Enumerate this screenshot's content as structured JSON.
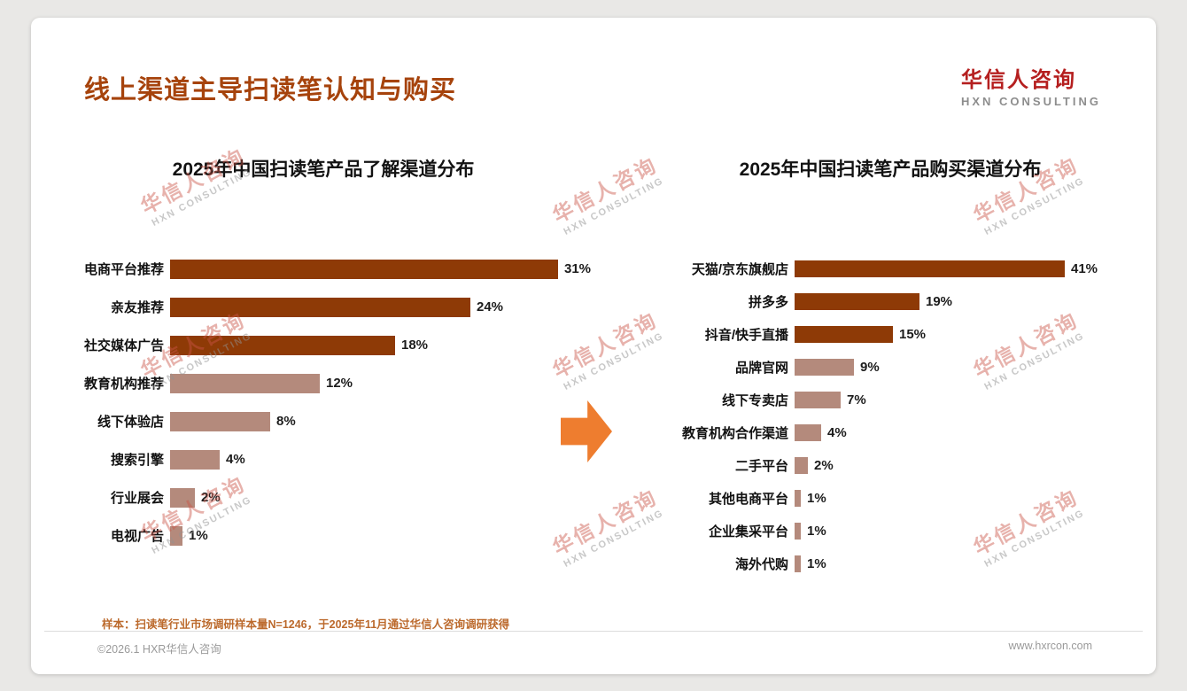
{
  "page": {
    "title": "线上渠道主导扫读笔认知与购买",
    "logo": {
      "cn": "华信人咨询",
      "en": "HXN CONSULTING"
    },
    "watermark": {
      "cn": "华信人咨询",
      "en": "HXN CONSULTING"
    },
    "footer_note": "样本：扫读笔行业市场调研样本量N=1246，于2025年11月通过华信人咨询调研获得",
    "copyright": "©2026.1 HXR华信人咨询",
    "website": "www.hxrcon.com"
  },
  "colors": {
    "title": "#a6430c",
    "bar_dark": "#8e3a06",
    "bar_light": "#b48a7c",
    "arrow": "#ee7d2f",
    "logo_red": "#b51f1f"
  },
  "chart_data": [
    {
      "type": "bar",
      "orientation": "horizontal",
      "title": "2025年中国扫读笔产品了解渠道分布",
      "categories": [
        "电商平台推荐",
        "亲友推荐",
        "社交媒体广告",
        "教育机构推荐",
        "线下体验店",
        "搜索引擎",
        "行业展会",
        "电视广告"
      ],
      "values": [
        31,
        24,
        18,
        12,
        8,
        4,
        2,
        1
      ],
      "unit": "%",
      "xlim": [
        0,
        33
      ],
      "highlight_count": 3,
      "grid": false,
      "legend": false
    },
    {
      "type": "bar",
      "orientation": "horizontal",
      "title": "2025年中国扫读笔产品购买渠道分布",
      "categories": [
        "天猫/京东旗舰店",
        "拼多多",
        "抖音/快手直播",
        "品牌官网",
        "线下专卖店",
        "教育机构合作渠道",
        "二手平台",
        "其他电商平台",
        "企业集采平台",
        "海外代购"
      ],
      "values": [
        41,
        19,
        15,
        9,
        7,
        4,
        2,
        1,
        1,
        1
      ],
      "unit": "%",
      "xlim": [
        0,
        44
      ],
      "highlight_count": 3,
      "grid": false,
      "legend": false
    }
  ]
}
